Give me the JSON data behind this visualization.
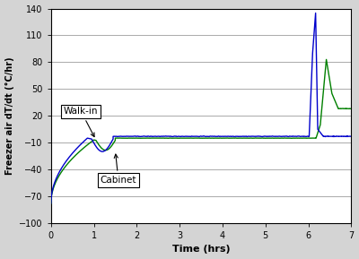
{
  "title": "",
  "xlabel": "Time (hrs)",
  "ylabel": "Freezer air dT/dt (°C/hr)",
  "xlim": [
    0,
    7
  ],
  "ylim": [
    -100,
    140
  ],
  "yticks": [
    -100,
    -70,
    -40,
    -10,
    20,
    50,
    80,
    110,
    140
  ],
  "xticks": [
    0,
    1,
    2,
    3,
    4,
    5,
    6,
    7
  ],
  "blue_color": "#0000CC",
  "green_color": "#008000",
  "annotation_walkin": "Walk-in",
  "annotation_cabinet": "Cabinet",
  "bg_color": "#d9d9d9",
  "plot_bg": "#ffffff"
}
